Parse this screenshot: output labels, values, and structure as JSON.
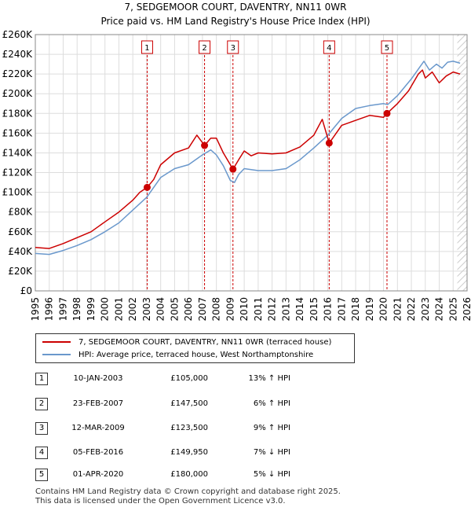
{
  "title_line1": "7, SEDGEMOOR COURT, DAVENTRY, NN11 0WR",
  "title_line2": "Price paid vs. HM Land Registry's House Price Index (HPI)",
  "colors": {
    "price": "#cc0000",
    "hpi": "#6a98cc",
    "marker_line": "#cc0000",
    "grid": "#dddddd",
    "hatch": "#cccccc"
  },
  "chart_data": {
    "type": "line",
    "x_range": [
      1995,
      2026
    ],
    "ylim": [
      0,
      260000
    ],
    "y_ticks": [
      0,
      20000,
      40000,
      60000,
      80000,
      100000,
      120000,
      140000,
      160000,
      180000,
      200000,
      220000,
      240000,
      260000
    ],
    "y_tick_labels": [
      "£0",
      "£20K",
      "£40K",
      "£60K",
      "£80K",
      "£100K",
      "£120K",
      "£140K",
      "£160K",
      "£180K",
      "£200K",
      "£220K",
      "£240K",
      "£260K"
    ],
    "x_ticks": [
      1995,
      1996,
      1997,
      1998,
      1999,
      2000,
      2001,
      2002,
      2003,
      2004,
      2005,
      2006,
      2007,
      2008,
      2009,
      2010,
      2011,
      2012,
      2013,
      2014,
      2015,
      2016,
      2017,
      2018,
      2019,
      2020,
      2021,
      2022,
      2023,
      2024,
      2025,
      2026
    ],
    "x_tick_labels": [
      "1995",
      "1996",
      "1997",
      "1998",
      "1999",
      "2000",
      "2001",
      "2002",
      "2003",
      "2004",
      "2005",
      "2006",
      "2007",
      "2008",
      "2009",
      "2010",
      "2011",
      "2012",
      "2013",
      "2014",
      "2015",
      "2016",
      "2017",
      "2018",
      "2019",
      "2020",
      "2021",
      "2022",
      "2023",
      "2024",
      "2025",
      "2026"
    ],
    "hatch_from": 2025.3,
    "series": [
      {
        "name": "7, SEDGEMOOR COURT, DAVENTRY, NN11 0WR (terraced house)",
        "x": [
          1995,
          1996,
          1997,
          1998,
          1999,
          2000,
          2001,
          2002,
          2002.5,
          2003.03,
          2003.5,
          2004,
          2005,
          2006,
          2006.6,
          2007.15,
          2007.6,
          2008,
          2008.5,
          2009.19,
          2009.6,
          2010,
          2010.5,
          2011,
          2012,
          2013,
          2014,
          2015,
          2015.6,
          2016.1,
          2016.5,
          2017,
          2018,
          2019,
          2020,
          2020.25,
          2021,
          2021.8,
          2022.5,
          2022.8,
          2023,
          2023.5,
          2024,
          2024.5,
          2025,
          2025.5
        ],
        "y": [
          44000,
          43000,
          48000,
          54000,
          60000,
          70000,
          80000,
          92000,
          100000,
          105000,
          113000,
          128000,
          140000,
          145000,
          158000,
          147500,
          155000,
          155000,
          140000,
          123500,
          133000,
          142000,
          137000,
          140000,
          139000,
          140000,
          146000,
          158000,
          174000,
          149950,
          158000,
          168000,
          173000,
          178000,
          176000,
          180000,
          190000,
          203000,
          220000,
          224000,
          216000,
          222000,
          211000,
          218000,
          222000,
          220000
        ]
      },
      {
        "name": "HPI: Average price, terraced house, West Northamptonshire",
        "x": [
          1995,
          1996,
          1997,
          1998,
          1999,
          2000,
          2001,
          2002,
          2003,
          2004,
          2005,
          2006,
          2007,
          2007.6,
          2008,
          2008.5,
          2009,
          2009.3,
          2009.6,
          2010,
          2011,
          2012,
          2013,
          2014,
          2015,
          2016,
          2017,
          2018,
          2019,
          2020,
          2020.3,
          2021,
          2022,
          2022.9,
          2023.3,
          2023.8,
          2024.2,
          2024.6,
          2025,
          2025.5
        ],
        "y": [
          38000,
          37000,
          41000,
          46000,
          52000,
          60000,
          69000,
          82000,
          95000,
          115000,
          124000,
          128000,
          138000,
          143000,
          138000,
          127000,
          112000,
          110000,
          118000,
          124000,
          122000,
          122000,
          124000,
          133000,
          145000,
          158000,
          175000,
          185000,
          188000,
          190000,
          189000,
          198000,
          215000,
          233000,
          224000,
          230000,
          226000,
          232000,
          233000,
          231000
        ]
      }
    ],
    "sales": [
      {
        "n": "1",
        "x": 2003.03,
        "y": 105000
      },
      {
        "n": "2",
        "x": 2007.15,
        "y": 147500
      },
      {
        "n": "3",
        "x": 2009.19,
        "y": 123500
      },
      {
        "n": "4",
        "x": 2016.1,
        "y": 149950
      },
      {
        "n": "5",
        "x": 2020.25,
        "y": 180000
      }
    ]
  },
  "legend": {
    "price_label": "7, SEDGEMOOR COURT, DAVENTRY, NN11 0WR (terraced house)",
    "hpi_label": "HPI: Average price, terraced house, West Northamptonshire"
  },
  "sales_table": [
    {
      "n": "1",
      "date": "10-JAN-2003",
      "price": "£105,000",
      "hpi": "13% ↑ HPI"
    },
    {
      "n": "2",
      "date": "23-FEB-2007",
      "price": "£147,500",
      "hpi": "6% ↑ HPI"
    },
    {
      "n": "3",
      "date": "12-MAR-2009",
      "price": "£123,500",
      "hpi": "9% ↑ HPI"
    },
    {
      "n": "4",
      "date": "05-FEB-2016",
      "price": "£149,950",
      "hpi": "7% ↓ HPI"
    },
    {
      "n": "5",
      "date": "01-APR-2020",
      "price": "£180,000",
      "hpi": "5% ↓ HPI"
    }
  ],
  "footer": {
    "line1": "Contains HM Land Registry data © Crown copyright and database right 2025.",
    "line2": "This data is licensed under the Open Government Licence v3.0."
  }
}
